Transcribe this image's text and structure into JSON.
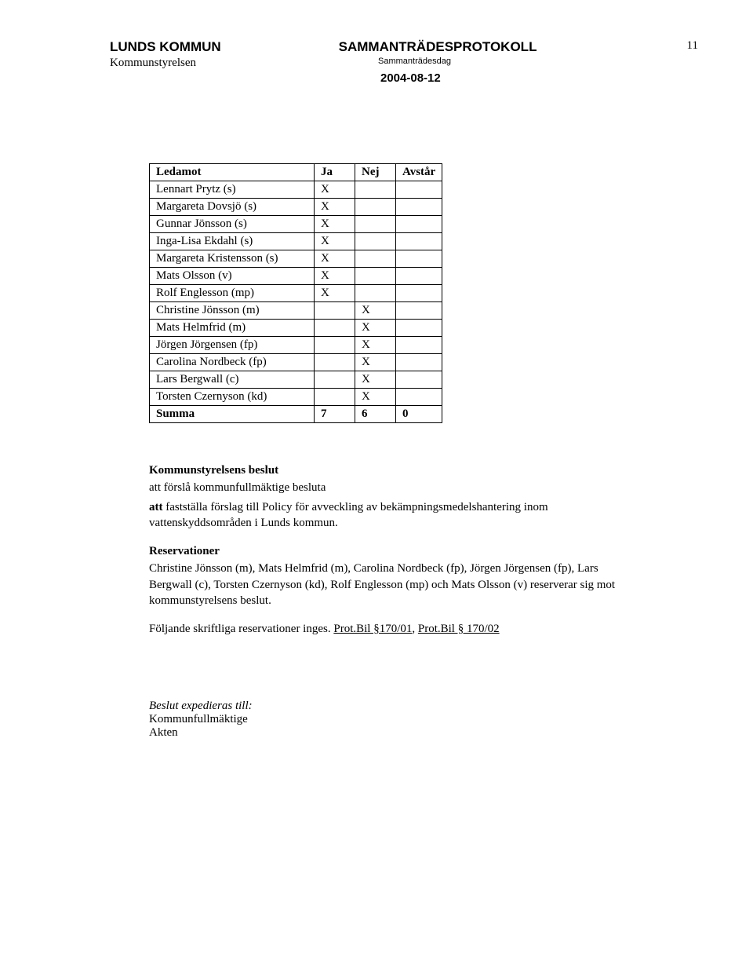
{
  "header": {
    "org_name": "LUNDS KOMMUN",
    "protocol_title": "SAMMANTRÄDESPROTOKOLL",
    "page_number": "11",
    "body_name": "Kommunstyrelsen",
    "meeting_label": "Sammanträdesdag",
    "date": "2004-08-12"
  },
  "vote_table": {
    "columns": [
      "Ledamot",
      "Ja",
      "Nej",
      "Avstår"
    ],
    "rows": [
      {
        "name": "Lennart Prytz (s)",
        "ja": "X",
        "nej": "",
        "abs": ""
      },
      {
        "name": "Margareta Dovsjö (s)",
        "ja": "X",
        "nej": "",
        "abs": ""
      },
      {
        "name": "Gunnar Jönsson (s)",
        "ja": "X",
        "nej": "",
        "abs": ""
      },
      {
        "name": "Inga-Lisa Ekdahl (s)",
        "ja": "X",
        "nej": "",
        "abs": ""
      },
      {
        "name": "Margareta Kristensson (s)",
        "ja": "X",
        "nej": "",
        "abs": ""
      },
      {
        "name": "Mats Olsson (v)",
        "ja": "X",
        "nej": "",
        "abs": ""
      },
      {
        "name": "Rolf Englesson (mp)",
        "ja": "X",
        "nej": "",
        "abs": ""
      },
      {
        "name": "Christine Jönsson (m)",
        "ja": "",
        "nej": "X",
        "abs": ""
      },
      {
        "name": "Mats Helmfrid (m)",
        "ja": "",
        "nej": "X",
        "abs": ""
      },
      {
        "name": "Jörgen Jörgensen (fp)",
        "ja": "",
        "nej": "X",
        "abs": ""
      },
      {
        "name": "Carolina Nordbeck (fp)",
        "ja": "",
        "nej": "X",
        "abs": ""
      },
      {
        "name": "Lars Bergwall (c)",
        "ja": "",
        "nej": "X",
        "abs": ""
      },
      {
        "name": "Torsten Czernyson (kd)",
        "ja": "",
        "nej": "X",
        "abs": ""
      }
    ],
    "summary": {
      "label": "Summa",
      "ja": "7",
      "nej": "6",
      "abs": "0"
    }
  },
  "decision": {
    "heading": "Kommunstyrelsens beslut",
    "line1": "att förslå kommunfullmäktige besluta",
    "line2_prefix": "att",
    "line2_rest": " fastställa förslag till Policy för avveckling av bekämpningsmedelshantering inom vattenskyddsområden i Lunds kommun."
  },
  "reservations": {
    "heading": "Reservationer",
    "text": "Christine Jönsson (m), Mats Helmfrid (m), Carolina Nordbeck (fp), Jörgen Jörgensen (fp), Lars Bergwall (c), Torsten Czernyson (kd), Rolf Englesson (mp) och Mats Olsson (v) reserverar sig mot kommunstyrelsens beslut.",
    "written_prefix": "Följande skriftliga reservationer inges.    ",
    "link1": "Prot.Bil §170/01",
    "sep": ", ",
    "link2": "Prot.Bil § 170/02"
  },
  "footer": {
    "label": "Beslut expedieras till:",
    "line1": "Kommunfullmäktige",
    "line2": "Akten"
  }
}
